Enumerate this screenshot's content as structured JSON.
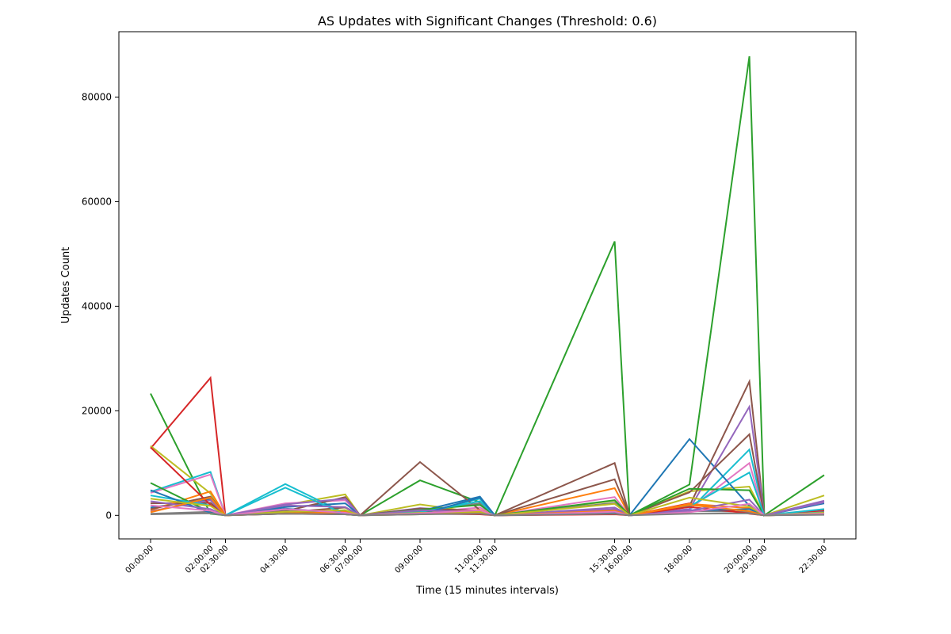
{
  "chart_data": {
    "type": "line",
    "title": "AS Updates with Significant Changes (Threshold: 0.6)",
    "xlabel": "Time (15 minutes intervals)",
    "ylabel": "Updates Count",
    "ylim": [
      -4500,
      92500
    ],
    "y_ticks": [
      0,
      20000,
      40000,
      60000,
      80000
    ],
    "grid": false,
    "legend": "none",
    "x": [
      "00:00:00",
      "02:00:00",
      "02:30:00",
      "04:30:00",
      "06:30:00",
      "07:00:00",
      "09:00:00",
      "11:00:00",
      "11:30:00",
      "15:30:00",
      "16:00:00",
      "18:00:00",
      "20:00:00",
      "20:30:00",
      "22:30:00"
    ],
    "x_ticks": [
      "00:00:00",
      "02:00:00",
      "02:30:00",
      "04:30:00",
      "06:30:00",
      "07:00:00",
      "09:00:00",
      "11:00:00",
      "11:30:00",
      "15:30:00",
      "16:00:00",
      "18:00:00",
      "20:00:00",
      "20:30:00",
      "22:30:00"
    ],
    "series": [
      {
        "color": "#2ca02c",
        "values": [
          23300,
          300,
          0,
          400,
          200,
          0,
          6700,
          2500,
          0,
          52400,
          0,
          5900,
          87800,
          0,
          7700
        ]
      },
      {
        "color": "#d62728",
        "values": [
          12800,
          26300,
          0,
          600,
          300,
          0,
          400,
          300,
          0,
          300,
          0,
          2300,
          300,
          0,
          900
        ]
      },
      {
        "color": "#bcbd22",
        "values": [
          13300,
          4200,
          0,
          2000,
          4000,
          0,
          2100,
          500,
          0,
          2800,
          0,
          4600,
          5500,
          0,
          3800
        ]
      },
      {
        "color": "#17becf",
        "values": [
          4500,
          8300,
          0,
          6000,
          400,
          0,
          300,
          3200,
          0,
          1000,
          0,
          1000,
          12600,
          0,
          1200
        ]
      },
      {
        "color": "#e377c2",
        "values": [
          4300,
          7800,
          0,
          2300,
          2900,
          0,
          500,
          1500,
          0,
          3500,
          0,
          1200,
          10000,
          0,
          600
        ]
      },
      {
        "color": "#1f77b4",
        "values": [
          1500,
          3100,
          0,
          1600,
          2300,
          0,
          800,
          3600,
          0,
          600,
          0,
          14600,
          1800,
          0,
          2300
        ]
      },
      {
        "color": "#8c564b",
        "values": [
          2300,
          2400,
          0,
          800,
          3500,
          0,
          10200,
          1000,
          0,
          10000,
          0,
          1800,
          25600,
          0,
          500
        ]
      },
      {
        "color": "#9467bd",
        "values": [
          800,
          2900,
          0,
          2100,
          3200,
          0,
          1400,
          800,
          0,
          1500,
          0,
          1200,
          20800,
          0,
          2800
        ]
      },
      {
        "color": "#ff7f0e",
        "values": [
          1000,
          4600,
          0,
          500,
          800,
          0,
          400,
          1100,
          0,
          5200,
          0,
          2200,
          1400,
          0,
          300
        ]
      },
      {
        "color": "#7f7f7f",
        "values": [
          300,
          700,
          0,
          1100,
          300,
          0,
          800,
          2300,
          0,
          2400,
          0,
          800,
          700,
          0,
          200
        ]
      },
      {
        "color": "#8c564b",
        "values": [
          1200,
          3600,
          0,
          600,
          1500,
          0,
          1300,
          900,
          0,
          6900,
          0,
          4400,
          15500,
          0,
          400
        ]
      },
      {
        "color": "#2ca02c",
        "values": [
          6200,
          600,
          0,
          300,
          1000,
          0,
          1100,
          2000,
          0,
          2900,
          0,
          5100,
          4800,
          0,
          200
        ]
      },
      {
        "color": "#17becf",
        "values": [
          3800,
          1900,
          0,
          5300,
          200,
          0,
          600,
          2700,
          0,
          900,
          0,
          1700,
          8200,
          0,
          600
        ]
      },
      {
        "color": "#d62728",
        "values": [
          13000,
          2000,
          0,
          300,
          200,
          0,
          300,
          200,
          0,
          200,
          0,
          1600,
          400,
          0,
          200
        ]
      },
      {
        "color": "#1f77b4",
        "values": [
          4800,
          500,
          0,
          1300,
          400,
          0,
          200,
          3400,
          0,
          400,
          0,
          900,
          1200,
          0,
          300
        ]
      },
      {
        "color": "#9467bd",
        "values": [
          2700,
          1200,
          0,
          1900,
          1600,
          0,
          1000,
          600,
          0,
          1200,
          0,
          900,
          3000,
          0,
          2500
        ]
      },
      {
        "color": "#ff7f0e",
        "values": [
          600,
          3400,
          0,
          400,
          600,
          0,
          200,
          500,
          0,
          900,
          0,
          2000,
          800,
          0,
          200
        ]
      },
      {
        "color": "#bcbd22",
        "values": [
          3200,
          1800,
          0,
          700,
          1000,
          0,
          500,
          700,
          0,
          2200,
          0,
          3400,
          1700,
          0,
          500
        ]
      },
      {
        "color": "#e377c2",
        "values": [
          1900,
          900,
          0,
          1200,
          500,
          0,
          400,
          1000,
          0,
          700,
          0,
          600,
          2200,
          0,
          300
        ]
      },
      {
        "color": "#7f7f7f",
        "values": [
          200,
          400,
          0,
          300,
          200,
          0,
          200,
          300,
          0,
          300,
          0,
          300,
          400,
          0,
          100
        ]
      }
    ]
  }
}
